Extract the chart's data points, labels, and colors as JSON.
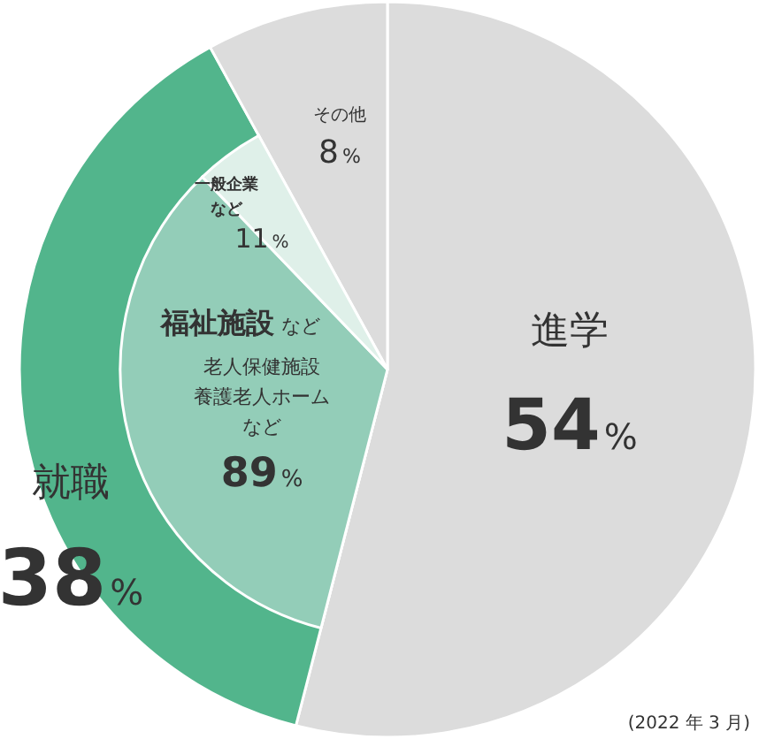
{
  "chart_data": [
    {
      "type": "pie",
      "categories": [
        "進学",
        "就職",
        "その他"
      ],
      "values": [
        54,
        38,
        8
      ],
      "colors": [
        "#dcdcdc",
        "#52b58c",
        "#dcdcdc"
      ],
      "value_labels": [
        "54%",
        "38%",
        "8%"
      ],
      "annotations": [
        "(2022 年 3 月)"
      ]
    },
    {
      "type": "pie",
      "categories": [
        "福祉施設など老人保健施設養護老人ホームなど",
        "一般企業など"
      ],
      "values": [
        89,
        11
      ],
      "colors": [
        "#93cdb8",
        "#dff0e9"
      ],
      "value_labels": [
        "89%",
        "11%"
      ]
    }
  ]
}
